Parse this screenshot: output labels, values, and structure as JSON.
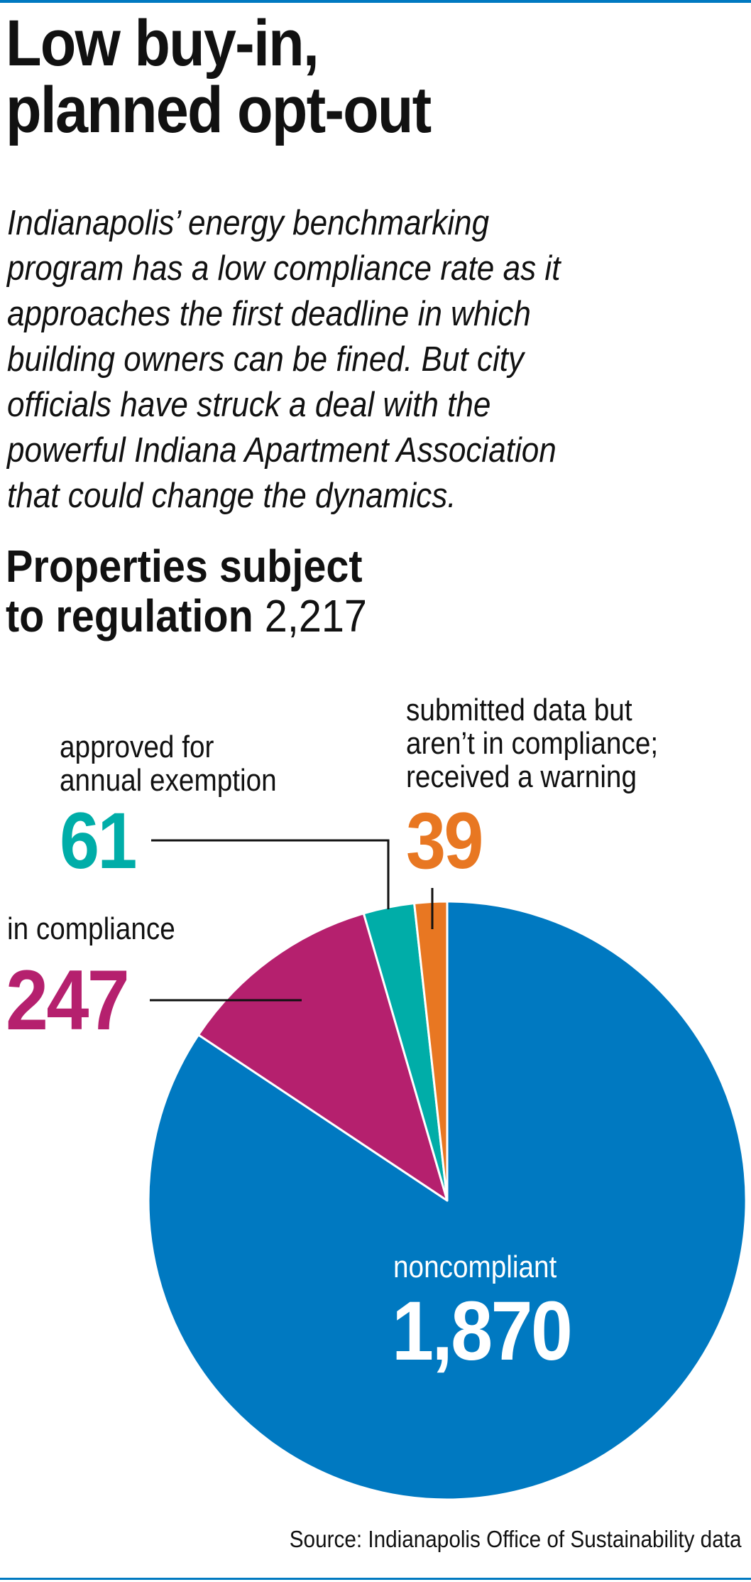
{
  "header": {
    "title_lines": [
      "Low buy-in,",
      "planned opt-out"
    ],
    "dek_lines": [
      "Indianapolis’ energy benchmarking",
      "program has a low compliance rate as it",
      "approaches the first deadline in which",
      "building owners can be fined. But city",
      "officials have struck a deal with the",
      "powerful Indiana Apartment Association",
      "that could change the dynamics."
    ],
    "subtitle_line1": "Properties subject",
    "subtitle_line2_bold": "to regulation",
    "subtitle_total": "2,217"
  },
  "chart_data": {
    "type": "pie",
    "total": 2217,
    "start": "top, clockwise",
    "slices": [
      {
        "label": "noncompliant",
        "value": 1870,
        "value_label": "1,870",
        "color": "#0079c1"
      },
      {
        "label": "in compliance",
        "value": 247,
        "value_label": "247",
        "color": "#b5206e"
      },
      {
        "label_lines": [
          "approved for",
          "annual exemption"
        ],
        "value": 61,
        "value_label": "61",
        "color": "#00ada8"
      },
      {
        "label_lines": [
          "submitted data but",
          "aren’t in compliance;",
          "received a warning"
        ],
        "value": 39,
        "value_label": "39",
        "color": "#e87722"
      }
    ]
  },
  "footer": {
    "source": "Source: Indianapolis Office of Sustainability data"
  },
  "colors": {
    "rule": "#0079c1"
  }
}
